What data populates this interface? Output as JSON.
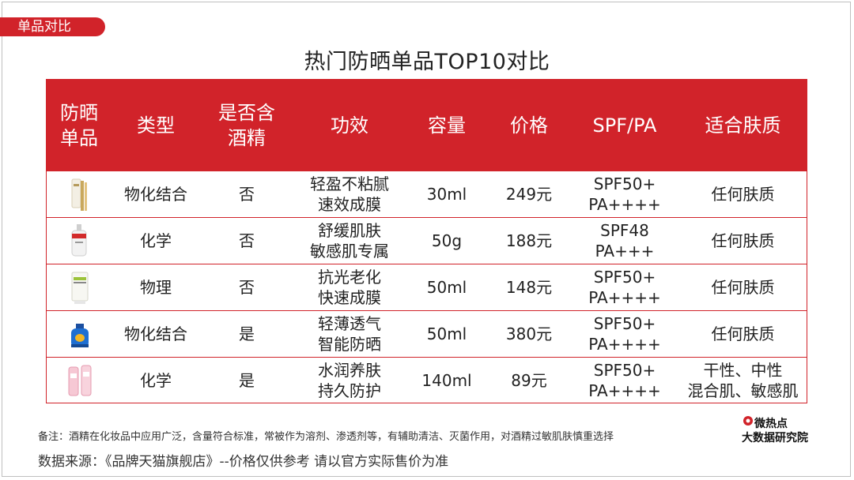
{
  "tag_label": "单品对比",
  "title": "热门防晒单品TOP10对比",
  "headers": [
    "防晒\n单品",
    "类型",
    "是否含\n酒精",
    "功效",
    "容量",
    "价格",
    "SPF/PA",
    "适合肤质"
  ],
  "rows": [
    {
      "type": "物化结合",
      "alcohol": "否",
      "effect": "轻盈不粘腻\n速效成膜",
      "volume": "30ml",
      "price": "249元",
      "spf": "SPF50+\nPA++++",
      "skin": "任何肤质"
    },
    {
      "type": "化学",
      "alcohol": "否",
      "effect": "舒缓肌肤\n敏感肌专属",
      "volume": "50g",
      "price": "188元",
      "spf": "SPF48\nPA+++",
      "skin": "任何肤质"
    },
    {
      "type": "物理",
      "alcohol": "否",
      "effect": "抗光老化\n快速成膜",
      "volume": "50ml",
      "price": "148元",
      "spf": "SPF50+\nPA++++",
      "skin": "任何肤质"
    },
    {
      "type": "物化结合",
      "alcohol": "是",
      "effect": "轻薄透气\n智能防晒",
      "volume": "50ml",
      "price": "380元",
      "spf": "SPF50+\nPA++++",
      "skin": "任何肤质"
    },
    {
      "type": "化学",
      "alcohol": "是",
      "effect": "水润养肤\n持久防护",
      "volume": "140ml",
      "price": "89元",
      "spf": "SPF50+\nPA++++",
      "skin": "干性、中性\n混合肌、敏感肌"
    }
  ],
  "note": "备注：酒精在化妆品中应用广泛，含量符合标准，常被作为溶剂、渗透剂等，有辅助清洁、灭菌作用，对酒精过敏肌肤慎重选择",
  "source": "数据来源：《品牌天猫旗舰店》--价格仅供参考 请以官方实际售价为准",
  "logo": {
    "line1": "微热点",
    "line2": "大数据研究院"
  },
  "colors": {
    "accent": "#d1232a"
  }
}
